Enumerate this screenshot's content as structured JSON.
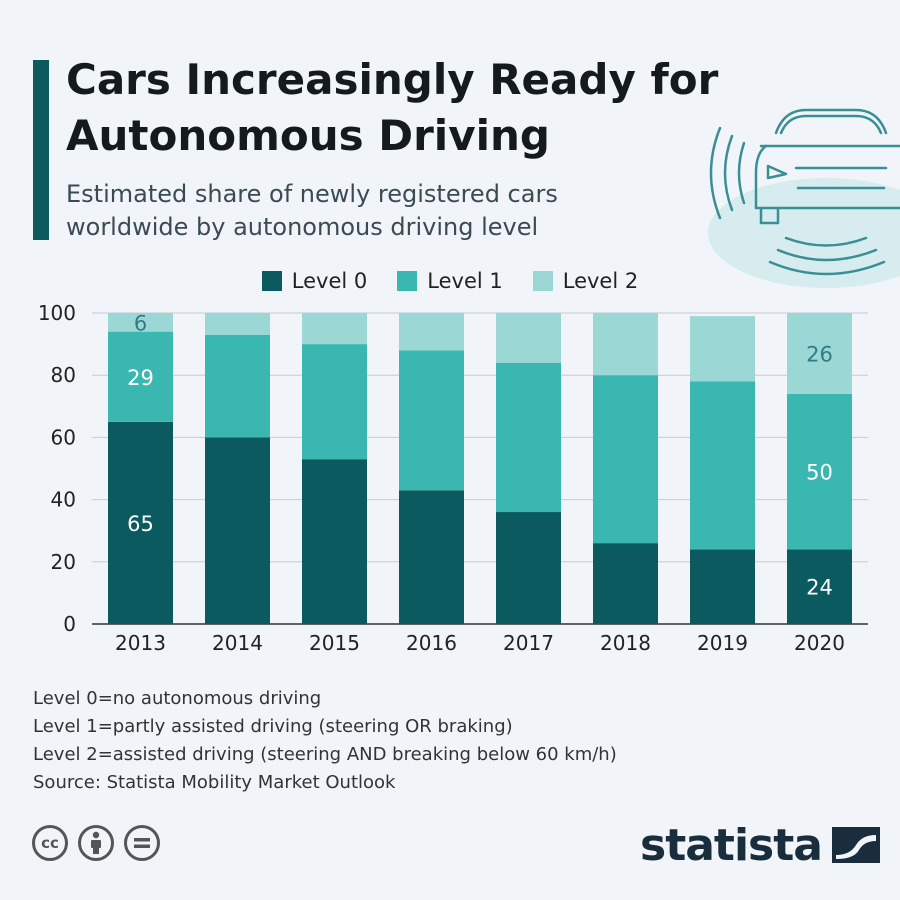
{
  "colors": {
    "level0": "#0b5a60",
    "level1": "#3bb7b1",
    "level2": "#9bd7d4",
    "accent": "#0b5a60",
    "logo": "#1a2d3d"
  },
  "icons": [
    "car-front-icon",
    "cc-icon",
    "attribution-icon",
    "no-derivatives-icon",
    "statista-logo-icon"
  ],
  "chart_data": {
    "type": "bar",
    "stacked": true,
    "title": "Cars Increasingly Ready for Autonomous Driving",
    "subtitle": "Estimated share of newly registered cars worldwide by autonomous driving level",
    "categories": [
      "2013",
      "2014",
      "2015",
      "2016",
      "2017",
      "2018",
      "2019",
      "2020"
    ],
    "series": [
      {
        "name": "Level 0",
        "values": [
          65,
          60,
          53,
          43,
          36,
          26,
          24,
          24
        ]
      },
      {
        "name": "Level 1",
        "values": [
          29,
          33,
          37,
          45,
          48,
          54,
          54,
          50
        ]
      },
      {
        "name": "Level 2",
        "values": [
          6,
          7,
          10,
          12,
          16,
          20,
          21,
          26
        ]
      }
    ],
    "data_labels": [
      {
        "series": 0,
        "category": "2013",
        "text": "65"
      },
      {
        "series": 1,
        "category": "2013",
        "text": "29"
      },
      {
        "series": 2,
        "category": "2013",
        "text": "6"
      },
      {
        "series": 0,
        "category": "2020",
        "text": "24"
      },
      {
        "series": 1,
        "category": "2020",
        "text": "50"
      },
      {
        "series": 2,
        "category": "2020",
        "text": "26"
      }
    ],
    "ylim": [
      0,
      100
    ],
    "yticks": [
      "0",
      "20",
      "40",
      "60",
      "80",
      "100"
    ],
    "grid": true,
    "legend_position": "top-center"
  },
  "notes": [
    "Level 0=no autonomous driving",
    "Level 1=partly assisted driving (steering OR braking)",
    "Level 2=assisted driving (steering AND breaking below 60 km/h)",
    "Source: Statista Mobility Market Outlook"
  ],
  "footer": {
    "cc_label": "cc",
    "logo_text": "statista"
  }
}
